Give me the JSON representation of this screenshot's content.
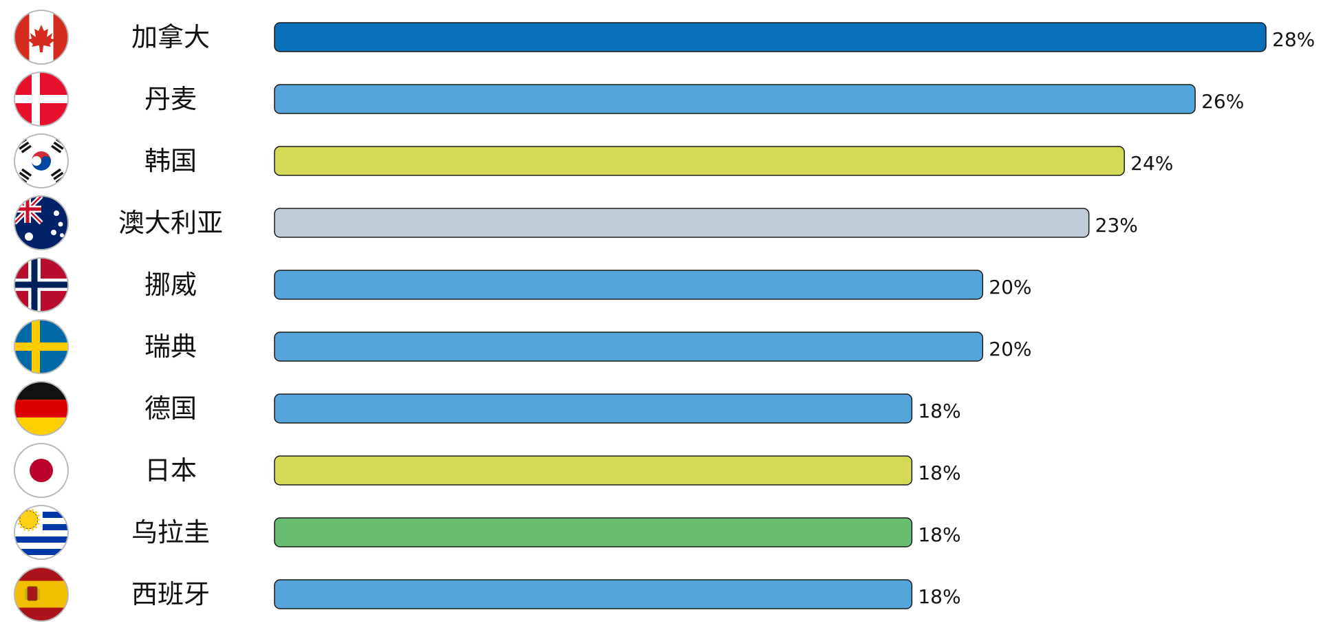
{
  "chart_data": {
    "type": "bar",
    "orientation": "horizontal",
    "categories": [
      "加拿大",
      "丹麦",
      "韩国",
      "澳大利亚",
      "挪威",
      "瑞典",
      "德国",
      "日本",
      "乌拉圭",
      "西班牙"
    ],
    "values": [
      28,
      26,
      24,
      23,
      20,
      20,
      18,
      18,
      18,
      18
    ],
    "value_labels": [
      "28%",
      "26%",
      "24%",
      "23%",
      "20%",
      "20%",
      "18%",
      "18%",
      "18%",
      "18%"
    ],
    "bar_colors": [
      "#086fb8",
      "#56a5da",
      "#d4da58",
      "#bfcbd7",
      "#56a5da",
      "#56a5da",
      "#56a5da",
      "#d4da58",
      "#68bd72",
      "#56a5da"
    ],
    "flags": [
      "canada-flag-icon",
      "denmark-flag-icon",
      "south-korea-flag-icon",
      "australia-flag-icon",
      "norway-flag-icon",
      "sweden-flag-icon",
      "germany-flag-icon",
      "japan-flag-icon",
      "uruguay-flag-icon",
      "spain-flag-icon"
    ],
    "xlim": [
      0,
      28
    ],
    "grid": false,
    "legend": "none",
    "title": "",
    "xlabel": "",
    "ylabel": ""
  }
}
